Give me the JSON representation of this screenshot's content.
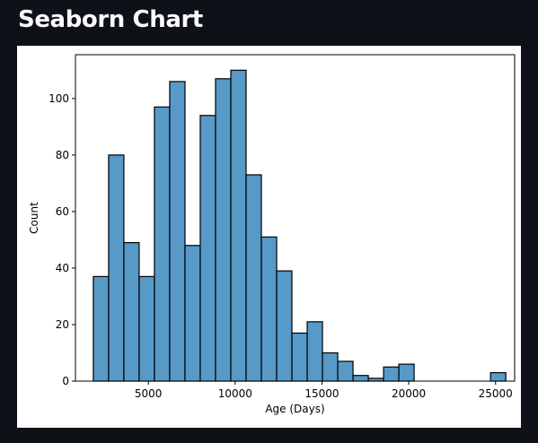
{
  "page": {
    "title": "Seaborn Chart"
  },
  "chart_data": {
    "type": "bar",
    "histogram": true,
    "xlabel": "Age (Days)",
    "ylabel": "Count",
    "xlim": [
      800,
      26100
    ],
    "ylim": [
      0,
      115.5
    ],
    "x_ticks": [
      5000,
      10000,
      15000,
      20000,
      25000
    ],
    "y_ticks": [
      0,
      20,
      40,
      60,
      80,
      100
    ],
    "bin_edges": [
      1830,
      2710,
      3590,
      4470,
      5350,
      6230,
      7110,
      7990,
      8870,
      9750,
      10630,
      11510,
      12390,
      13270,
      14150,
      15030,
      15910,
      16790,
      17670,
      18550,
      19430,
      20310,
      21190,
      22070,
      22950,
      23830,
      24710,
      25590
    ],
    "counts": [
      37,
      80,
      49,
      37,
      97,
      106,
      48,
      94,
      107,
      110,
      73,
      51,
      39,
      17,
      21,
      10,
      7,
      2,
      1,
      5,
      6,
      0,
      0,
      0,
      0,
      0,
      3
    ],
    "bar_color": "#5799c7",
    "edge_color": "#000000",
    "grid": false,
    "legend": "none"
  }
}
